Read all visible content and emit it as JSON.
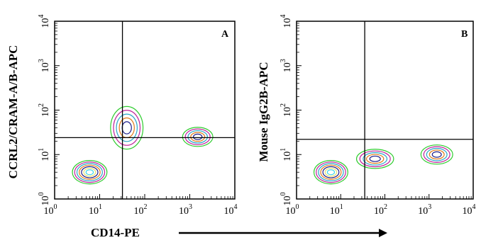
{
  "figure": {
    "x_axis_label": "CD14-PE",
    "arrow": "right-arrow"
  },
  "chart_data": [
    {
      "type": "contour",
      "panel_label": "A",
      "ylabel": "CCRL2/CRAM-A/B-APC",
      "xlabel": "CD14-PE",
      "x_scale": "log",
      "y_scale": "log",
      "xlim": [
        1,
        10000
      ],
      "ylim": [
        1,
        10000
      ],
      "x_ticks": [
        {
          "base": "10",
          "exp": "0"
        },
        {
          "base": "10",
          "exp": "1"
        },
        {
          "base": "10",
          "exp": "2"
        },
        {
          "base": "10",
          "exp": "3"
        },
        {
          "base": "10",
          "exp": "4"
        }
      ],
      "y_ticks": [
        {
          "base": "10",
          "exp": "0"
        },
        {
          "base": "10",
          "exp": "1"
        },
        {
          "base": "10",
          "exp": "2"
        },
        {
          "base": "10",
          "exp": "3"
        },
        {
          "base": "10",
          "exp": "4"
        }
      ],
      "quadrant_gate": {
        "x": 32,
        "y": 24
      },
      "contour_colors": [
        "#2ecc2e",
        "#c0209a",
        "#2aa6c8",
        "#e07a1a",
        "#1c1c8a",
        "#e8e070",
        "#40d8e8"
      ],
      "populations": [
        {
          "name": "main",
          "center": [
            6,
            4
          ],
          "spread": [
            0.32,
            0.22
          ]
        },
        {
          "name": "tail",
          "center": [
            40,
            40
          ],
          "spread": [
            0.3,
            0.4
          ]
        },
        {
          "name": "cd14-high",
          "center": [
            1500,
            25
          ],
          "spread": [
            0.28,
            0.18
          ]
        }
      ]
    },
    {
      "type": "contour",
      "panel_label": "B",
      "ylabel": "Mouse IgG2B-APC",
      "xlabel": "CD14-PE",
      "x_scale": "log",
      "y_scale": "log",
      "xlim": [
        1,
        10000
      ],
      "ylim": [
        1,
        10000
      ],
      "x_ticks": [
        {
          "base": "10",
          "exp": "0"
        },
        {
          "base": "10",
          "exp": "1"
        },
        {
          "base": "10",
          "exp": "2"
        },
        {
          "base": "10",
          "exp": "3"
        },
        {
          "base": "10",
          "exp": "4"
        }
      ],
      "y_ticks": [
        {
          "base": "10",
          "exp": "0"
        },
        {
          "base": "10",
          "exp": "1"
        },
        {
          "base": "10",
          "exp": "2"
        },
        {
          "base": "10",
          "exp": "3"
        },
        {
          "base": "10",
          "exp": "4"
        }
      ],
      "quadrant_gate": {
        "x": 35,
        "y": 22
      },
      "contour_colors": [
        "#2ecc2e",
        "#c0209a",
        "#2aa6c8",
        "#e07a1a",
        "#1c1c8a",
        "#e8e070",
        "#40d8e8"
      ],
      "populations": [
        {
          "name": "main",
          "center": [
            6,
            4
          ],
          "spread": [
            0.32,
            0.22
          ]
        },
        {
          "name": "tail",
          "center": [
            60,
            8
          ],
          "spread": [
            0.35,
            0.18
          ]
        },
        {
          "name": "cd14-high",
          "center": [
            1500,
            10
          ],
          "spread": [
            0.3,
            0.18
          ]
        }
      ]
    }
  ]
}
